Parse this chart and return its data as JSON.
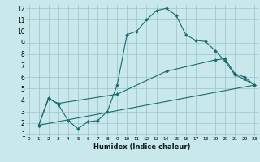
{
  "xlabel": "Humidex (Indice chaleur)",
  "bg_color": "#c8e8ec",
  "grid_color": "#9ac4ca",
  "line_color": "#1a6b6b",
  "xlim": [
    0,
    23
  ],
  "ylim": [
    1,
    12
  ],
  "xticks": [
    0,
    1,
    2,
    3,
    4,
    5,
    6,
    7,
    8,
    9,
    10,
    11,
    12,
    13,
    14,
    15,
    16,
    17,
    18,
    19,
    20,
    21,
    22,
    23
  ],
  "yticks": [
    1,
    2,
    3,
    4,
    5,
    6,
    7,
    8,
    9,
    10,
    11,
    12
  ],
  "line1_x": [
    1,
    2,
    3,
    4,
    5,
    6,
    7,
    8,
    9,
    10,
    11,
    12,
    13,
    14,
    15,
    16,
    17,
    18,
    19,
    20,
    21,
    22,
    23
  ],
  "line1_y": [
    1.8,
    4.2,
    3.6,
    2.2,
    1.5,
    2.1,
    2.2,
    3.0,
    5.3,
    9.7,
    10.0,
    11.0,
    11.8,
    12.0,
    11.4,
    9.7,
    9.2,
    9.1,
    8.3,
    7.4,
    6.2,
    5.8,
    5.3
  ],
  "line2_x": [
    1,
    2,
    3,
    9,
    14,
    19,
    20,
    21,
    22,
    23
  ],
  "line2_y": [
    1.8,
    4.1,
    3.7,
    4.5,
    6.5,
    7.5,
    7.6,
    6.3,
    6.0,
    5.3
  ],
  "line3_x": [
    1,
    23
  ],
  "line3_y": [
    1.8,
    5.3
  ]
}
